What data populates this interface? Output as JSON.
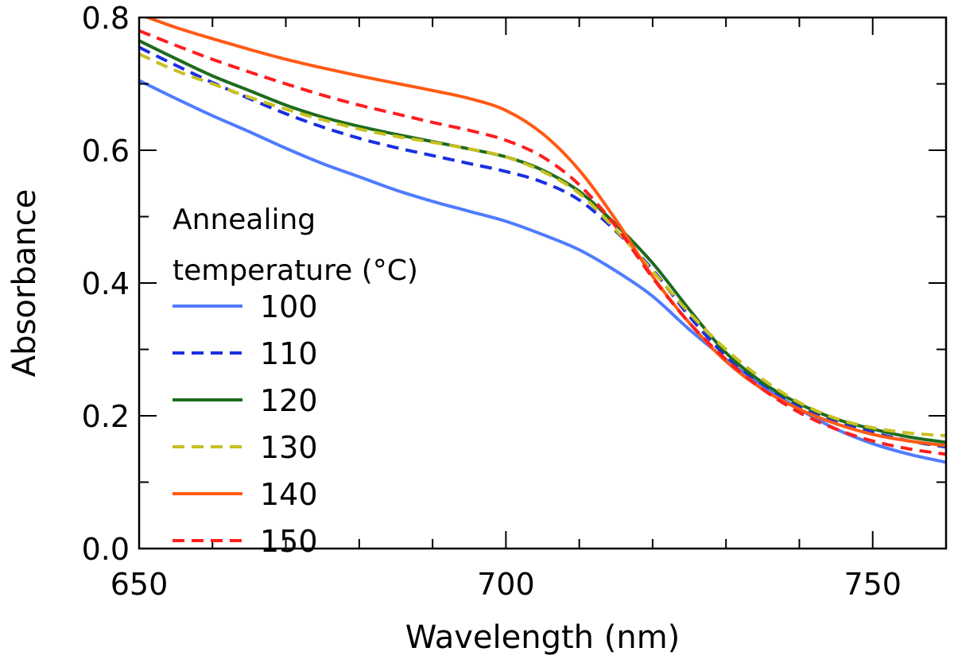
{
  "chart_data": {
    "type": "line",
    "title": "",
    "xlabel": "Wavelength (nm)",
    "ylabel": "Absorbance",
    "xlim": [
      650,
      760
    ],
    "ylim": [
      0.0,
      0.8
    ],
    "x_major_ticks": [
      650,
      700,
      750
    ],
    "x_tick_labels": [
      "650",
      "700",
      "750"
    ],
    "x_minor_ticks": [
      660,
      670,
      680,
      690,
      710,
      720,
      730,
      740,
      760
    ],
    "y_major_ticks": [
      0.0,
      0.2,
      0.4,
      0.6,
      0.8
    ],
    "y_tick_labels": [
      "0.0",
      "0.2",
      "0.4",
      "0.6",
      "0.8"
    ],
    "y_minor_ticks": [
      0.1,
      0.3,
      0.5,
      0.7
    ],
    "grid": false,
    "legend": {
      "title_lines": [
        "Annealing",
        "temperature (°C)"
      ],
      "placement": "center-left"
    },
    "x": [
      650,
      655,
      660,
      665,
      670,
      675,
      680,
      685,
      690,
      695,
      700,
      705,
      710,
      715,
      720,
      725,
      730,
      735,
      740,
      745,
      750,
      755,
      760
    ],
    "series": [
      {
        "name": "100",
        "color": "#4f7cff",
        "dash": "solid",
        "values": [
          0.705,
          0.678,
          0.652,
          0.628,
          0.603,
          0.58,
          0.56,
          0.54,
          0.523,
          0.508,
          0.493,
          0.473,
          0.45,
          0.418,
          0.38,
          0.33,
          0.285,
          0.245,
          0.21,
          0.18,
          0.158,
          0.142,
          0.13
        ]
      },
      {
        "name": "110",
        "color": "#1a2fe0",
        "dash": "dashed",
        "values": [
          0.755,
          0.728,
          0.702,
          0.678,
          0.655,
          0.635,
          0.618,
          0.604,
          0.592,
          0.58,
          0.568,
          0.552,
          0.525,
          0.478,
          0.42,
          0.35,
          0.29,
          0.248,
          0.215,
          0.192,
          0.175,
          0.162,
          0.153
        ]
      },
      {
        "name": "120",
        "color": "#1e6b1e",
        "dash": "solid",
        "values": [
          0.765,
          0.738,
          0.712,
          0.69,
          0.668,
          0.65,
          0.636,
          0.624,
          0.613,
          0.602,
          0.59,
          0.57,
          0.538,
          0.488,
          0.43,
          0.36,
          0.295,
          0.25,
          0.218,
          0.195,
          0.18,
          0.168,
          0.16
        ]
      },
      {
        "name": "130",
        "color": "#c8c020",
        "dash": "dashed",
        "values": [
          0.745,
          0.72,
          0.7,
          0.68,
          0.662,
          0.646,
          0.632,
          0.621,
          0.612,
          0.602,
          0.59,
          0.568,
          0.535,
          0.48,
          0.418,
          0.355,
          0.3,
          0.255,
          0.22,
          0.196,
          0.182,
          0.174,
          0.17
        ]
      },
      {
        "name": "140",
        "color": "#ff5a14",
        "dash": "solid",
        "values": [
          0.805,
          0.785,
          0.768,
          0.752,
          0.737,
          0.724,
          0.712,
          0.701,
          0.69,
          0.678,
          0.66,
          0.625,
          0.57,
          0.495,
          0.41,
          0.34,
          0.282,
          0.24,
          0.21,
          0.188,
          0.172,
          0.162,
          0.155
        ]
      },
      {
        "name": "150",
        "color": "#ff1e1e",
        "dash": "dashed",
        "values": [
          0.78,
          0.758,
          0.737,
          0.718,
          0.7,
          0.683,
          0.668,
          0.655,
          0.642,
          0.63,
          0.615,
          0.59,
          0.548,
          0.485,
          0.408,
          0.34,
          0.285,
          0.24,
          0.205,
          0.18,
          0.162,
          0.15,
          0.142
        ]
      }
    ]
  }
}
